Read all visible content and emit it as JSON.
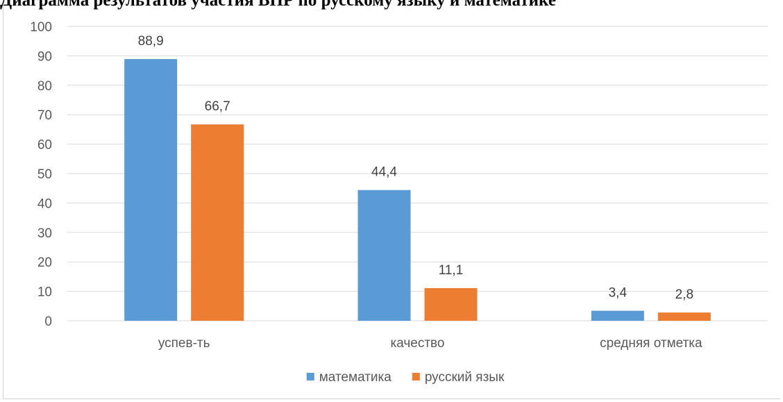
{
  "page": {
    "heading": "Диаграмма результатов участия ВПР по русскому языку и математике"
  },
  "chart_data": {
    "type": "bar",
    "title": "",
    "xlabel": "",
    "ylabel": "",
    "categories": [
      "успев-ть",
      "качество",
      "средняя отметка"
    ],
    "series": [
      {
        "name": "математика",
        "color": "#5b9bd5",
        "values": [
          88.9,
          44.4,
          3.4
        ],
        "labels": [
          "88,9",
          "44,4",
          "3,4"
        ]
      },
      {
        "name": "русский язык",
        "color": "#ed7d31",
        "values": [
          66.7,
          11.1,
          2.8
        ],
        "labels": [
          "66,7",
          "11,1",
          "2,8"
        ]
      }
    ],
    "ylim": [
      0,
      100
    ],
    "yticks": [
      0,
      10,
      20,
      30,
      40,
      50,
      60,
      70,
      80,
      90,
      100
    ],
    "ytick_labels": [
      "0",
      "10",
      "20",
      "30",
      "40",
      "50",
      "60",
      "70",
      "80",
      "90",
      "100"
    ],
    "grid": true,
    "gridline_color": "#d9d9d9",
    "legend_position": "bottom"
  }
}
